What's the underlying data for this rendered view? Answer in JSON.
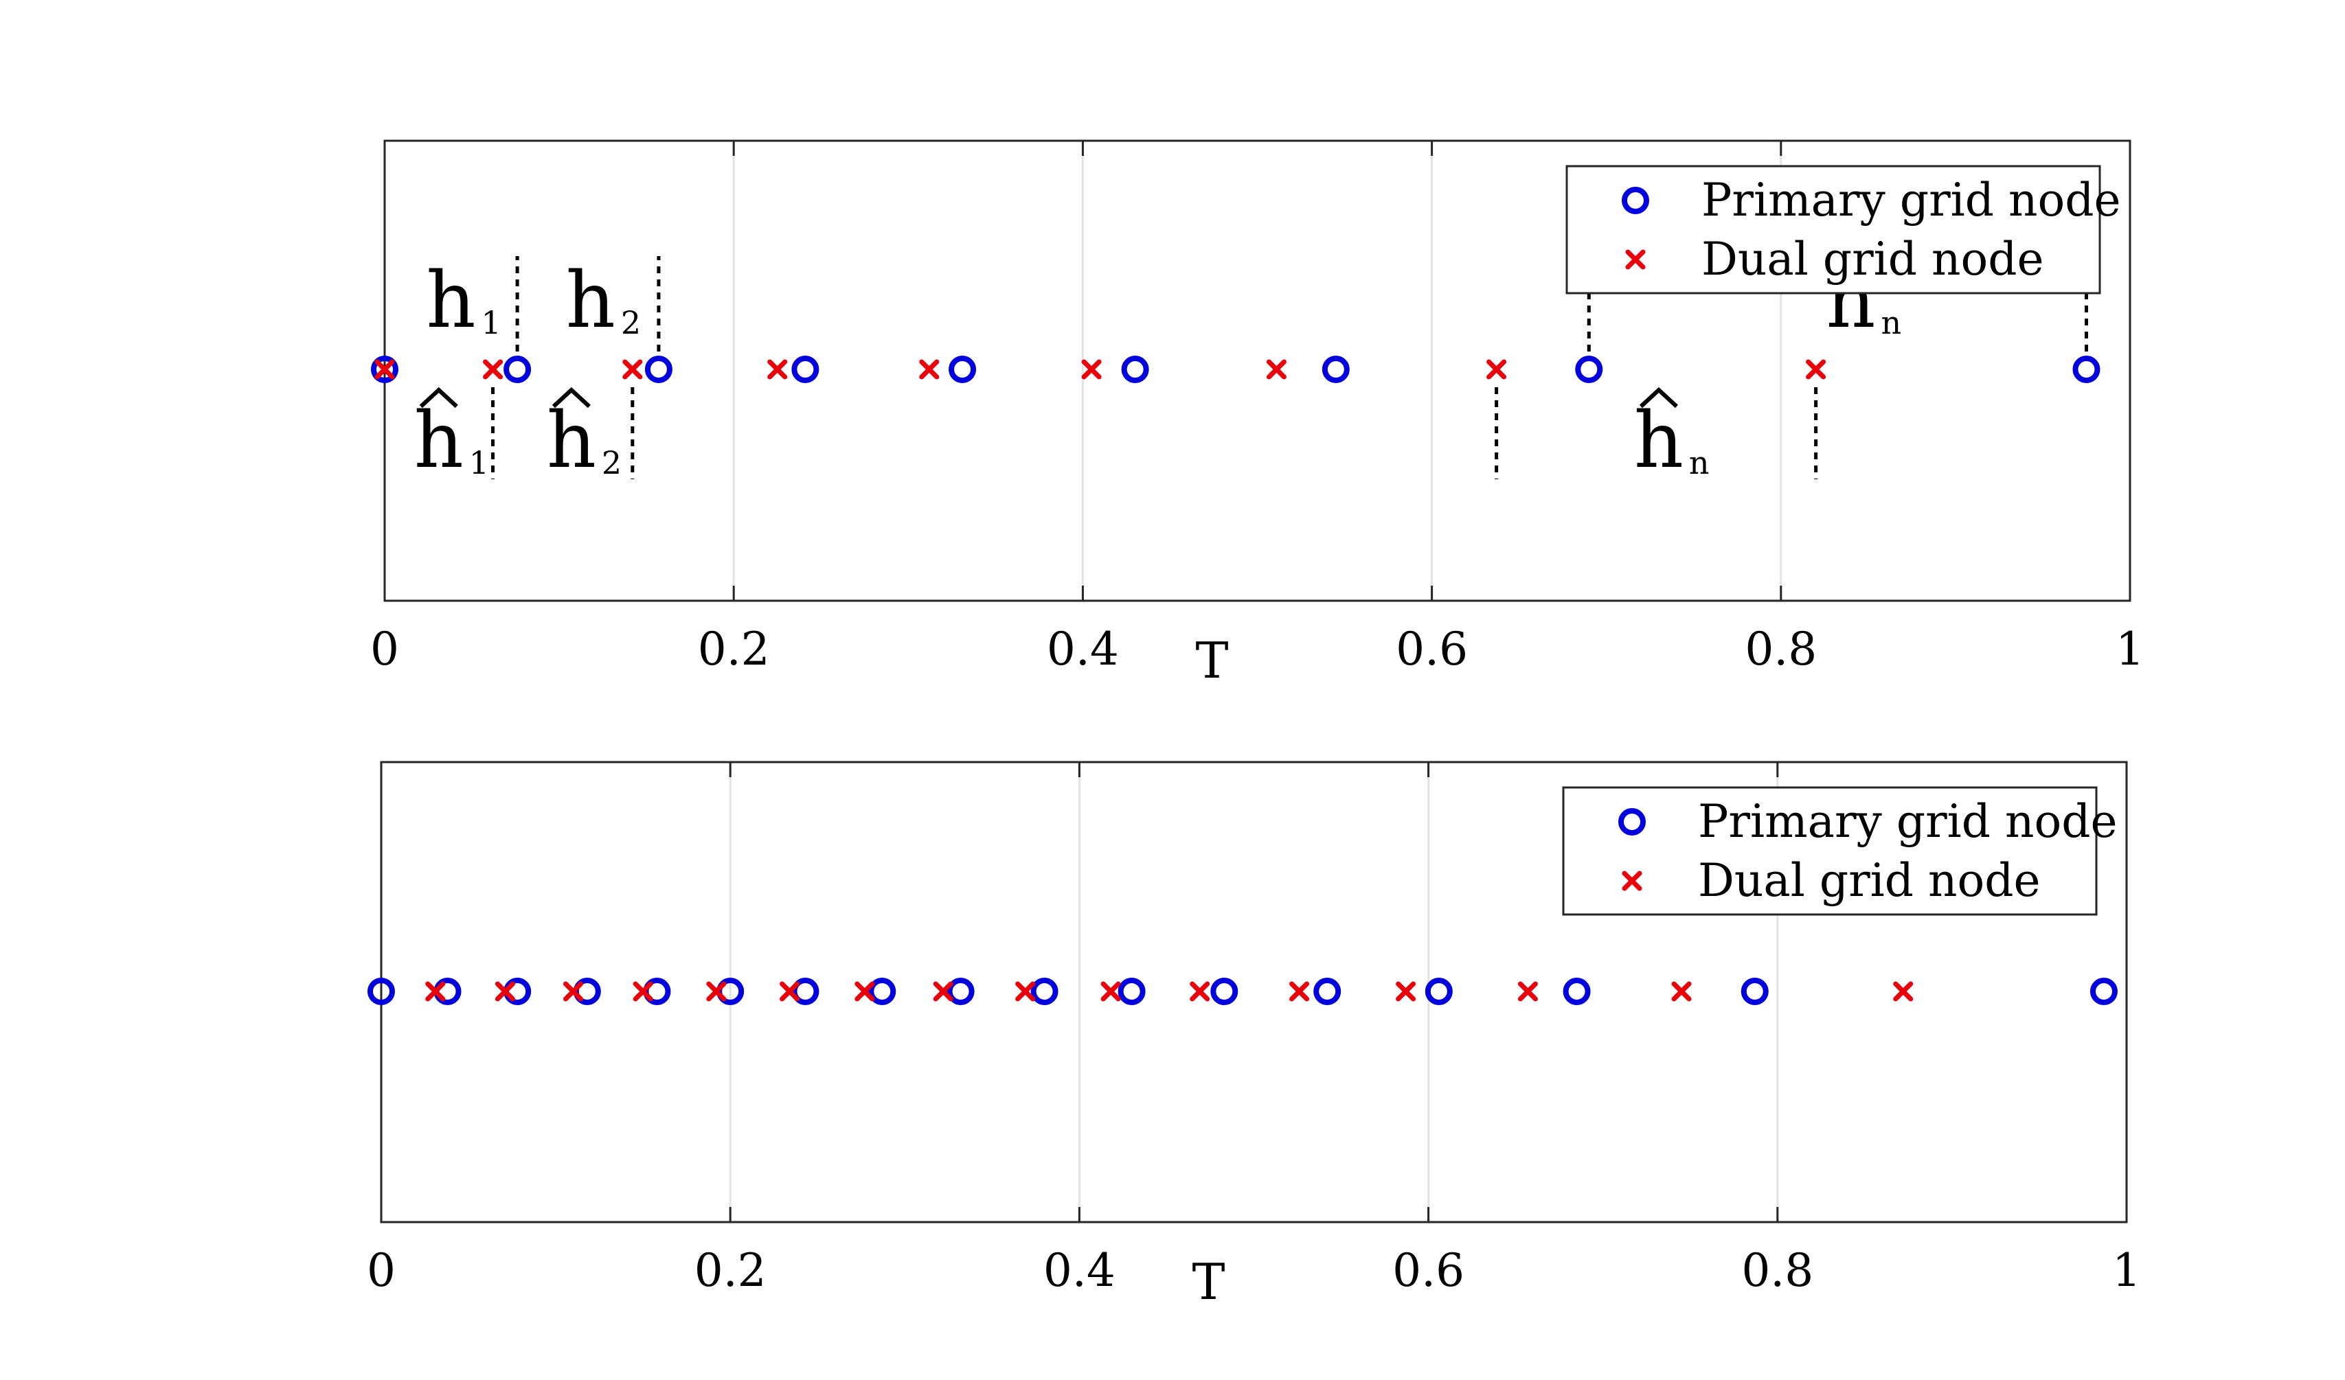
{
  "chart_data": [
    {
      "type": "scatter",
      "xlabel": "T",
      "xlim": [
        0,
        1
      ],
      "xticks": [
        0,
        0.2,
        0.4,
        0.6,
        0.8,
        1
      ],
      "xtick_labels": [
        "0",
        "0.2",
        "0.4",
        "0.6",
        "0.8",
        "1"
      ],
      "grid": "x",
      "legend_position": "top-right",
      "series": [
        {
          "name": "Primary grid node",
          "marker": "circle",
          "color": "#0000dd",
          "x": [
            0.0,
            0.076,
            0.157,
            0.241,
            0.331,
            0.43,
            0.545,
            0.69,
            0.975
          ]
        },
        {
          "name": "Dual grid node",
          "marker": "x",
          "color": "#e8000b",
          "x": [
            0.0,
            0.062,
            0.142,
            0.225,
            0.312,
            0.405,
            0.511,
            0.637,
            0.82
          ]
        }
      ],
      "annotations": [
        {
          "base": "h",
          "sub": "1",
          "hat": false,
          "x": 0.038
        },
        {
          "base": "h",
          "sub": "2",
          "hat": false,
          "x": 0.118
        },
        {
          "base": "h",
          "sub": "n",
          "hat": false,
          "x": 0.84
        },
        {
          "base": "h",
          "sub": "1",
          "hat": true,
          "x": 0.031
        },
        {
          "base": "h",
          "sub": "2",
          "hat": true,
          "x": 0.107
        },
        {
          "base": "h",
          "sub": "n",
          "hat": true,
          "x": 0.73
        }
      ],
      "dashed_markers_above": [
        0.076,
        0.157,
        0.69,
        0.975
      ],
      "dashed_markers_below": [
        0.062,
        0.142,
        0.637,
        0.82
      ]
    },
    {
      "type": "scatter",
      "xlabel": "T",
      "xlim": [
        0,
        1
      ],
      "xticks": [
        0,
        0.2,
        0.4,
        0.6,
        0.8,
        1
      ],
      "xtick_labels": [
        "0",
        "0.2",
        "0.4",
        "0.6",
        "0.8",
        "1"
      ],
      "grid": "x",
      "legend_position": "top-right",
      "series": [
        {
          "name": "Primary grid node",
          "marker": "circle",
          "color": "#0000dd",
          "x": [
            0.0,
            0.038,
            0.078,
            0.118,
            0.158,
            0.2,
            0.243,
            0.287,
            0.332,
            0.38,
            0.43,
            0.483,
            0.542,
            0.606,
            0.685,
            0.787,
            0.987
          ]
        },
        {
          "name": "Dual grid node",
          "marker": "x",
          "color": "#e8000b",
          "x": [
            0.031,
            0.071,
            0.11,
            0.15,
            0.192,
            0.234,
            0.277,
            0.322,
            0.369,
            0.418,
            0.469,
            0.526,
            0.587,
            0.657,
            0.745,
            0.872
          ]
        }
      ]
    }
  ]
}
